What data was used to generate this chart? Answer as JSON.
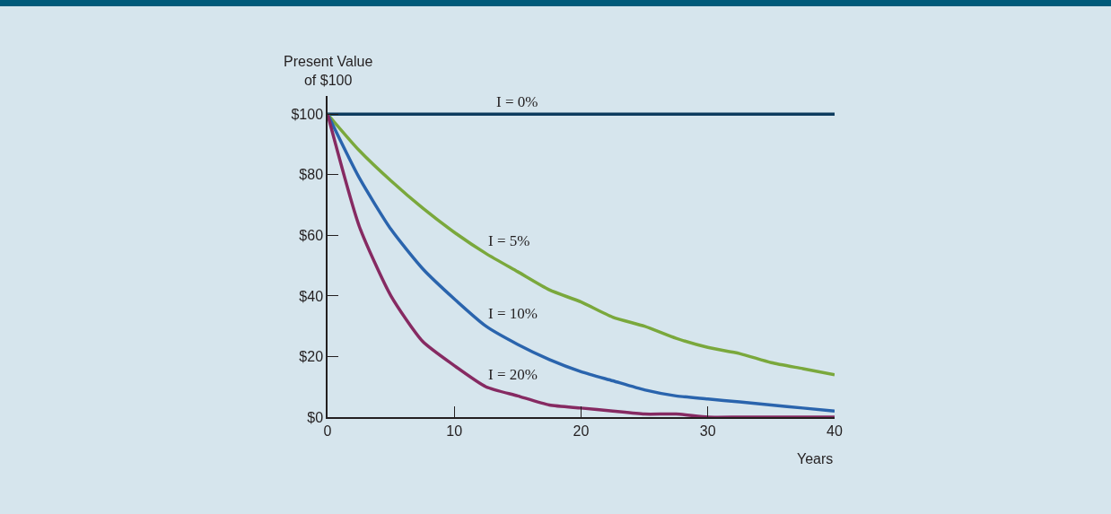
{
  "chart_data": {
    "type": "line",
    "ylabel": "Present Value\nof $100",
    "xlabel": "Years",
    "x": [
      0,
      2.5,
      5,
      7.5,
      10,
      12.5,
      15,
      17.5,
      20,
      22.5,
      25,
      27.5,
      30,
      32.5,
      35,
      37.5,
      40
    ],
    "series": [
      {
        "name": "I = 0%",
        "color": "#0d3b5e",
        "x": [
          0,
          40
        ],
        "values": [
          100,
          100
        ]
      },
      {
        "name": "I = 5%",
        "color": "#7aa83c",
        "values": [
          100,
          88,
          78,
          69,
          61,
          54,
          48,
          42,
          38,
          33,
          30,
          26,
          23,
          21,
          18,
          16,
          14
        ]
      },
      {
        "name": "I = 10%",
        "color": "#2a64ad",
        "values": [
          100,
          79,
          62,
          49,
          39,
          30,
          24,
          19,
          15,
          12,
          9,
          7,
          6,
          5,
          4,
          3,
          2
        ]
      },
      {
        "name": "I = 20%",
        "color": "#862a62",
        "values": [
          100,
          63,
          40,
          25,
          17,
          10,
          7,
          4,
          3,
          2,
          1,
          1,
          0,
          0,
          0,
          0,
          0
        ]
      }
    ],
    "xlim": [
      0,
      40
    ],
    "xticks": [
      0,
      10,
      20,
      30,
      40
    ],
    "ylim": [
      0,
      106
    ],
    "yticks": [
      {
        "value": 0,
        "label": "$0"
      },
      {
        "value": 20,
        "label": "$20"
      },
      {
        "value": 40,
        "label": "$40"
      },
      {
        "value": 60,
        "label": "$60"
      },
      {
        "value": 80,
        "label": "$80"
      },
      {
        "value": 100,
        "label": "$100"
      }
    ],
    "grid": false,
    "legend": false,
    "marker": "none",
    "line_style": "solid"
  }
}
